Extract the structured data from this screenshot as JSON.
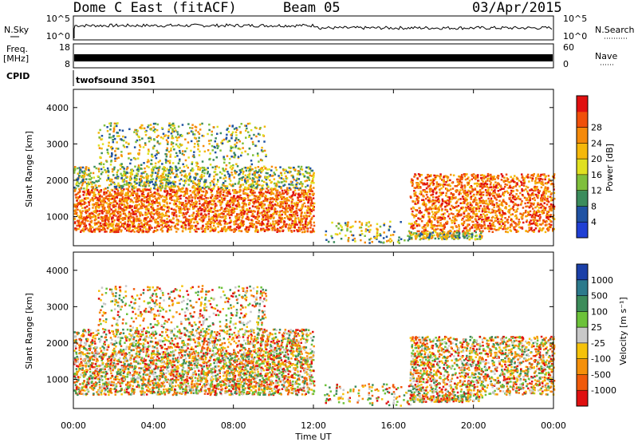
{
  "header": {
    "title": "Dome C East (fitACF)",
    "beam": "Beam 05",
    "date": "03/Apr/2015"
  },
  "side_labels": {
    "nsky": "N.Sky",
    "freq": "Freq.",
    "mhz": "[MHz]",
    "cpid": "CPID",
    "nsearch": "N.Search",
    "nave": "Nave"
  },
  "cpid_name": "twofsound 3501",
  "noise_panel": {
    "yticks_left": [
      "10^5",
      "10^0"
    ],
    "yticks_right": [
      "10^5",
      "10^0"
    ]
  },
  "freq_panel": {
    "yticks_left": [
      "18",
      "8"
    ],
    "yticks_right": [
      "60",
      "0"
    ]
  },
  "chart_data": [
    {
      "type": "heatmap",
      "name": "power",
      "ylabel": "Slant Range [km]",
      "yticks": [
        "1000",
        "2000",
        "3000",
        "4000"
      ],
      "ylim": [
        200,
        4500
      ],
      "colorbar": {
        "label": "Power [dB]",
        "ticks": [
          "4",
          "8",
          "12",
          "16",
          "20",
          "24",
          "28"
        ],
        "colors": [
          "#1f3fd4",
          "#1f52a3",
          "#3b8c5c",
          "#7fbf3b",
          "#e0e020",
          "#f5b80a",
          "#f58a0a",
          "#f0500a",
          "#e01010"
        ]
      }
    },
    {
      "type": "heatmap",
      "name": "velocity",
      "ylabel": "Slant Range [km]",
      "yticks": [
        "1000",
        "2000",
        "3000",
        "4000"
      ],
      "ylim": [
        200,
        4500
      ],
      "colorbar": {
        "label": "Velocity [m s⁻¹]",
        "ticks": [
          "1000",
          "500",
          "100",
          "25",
          "-25",
          "-100",
          "-500",
          "-1000"
        ],
        "colors": [
          "#1a3fa8",
          "#2c7a8c",
          "#3c8c5a",
          "#6cc23a",
          "#c8c8c8",
          "#f5c20a",
          "#f5900a",
          "#f05a0a",
          "#e01010"
        ]
      }
    }
  ],
  "time_axis": {
    "label": "Time UT",
    "ticks": [
      "00:00",
      "04:00",
      "08:00",
      "12:00",
      "16:00",
      "20:00",
      "00:00"
    ]
  }
}
